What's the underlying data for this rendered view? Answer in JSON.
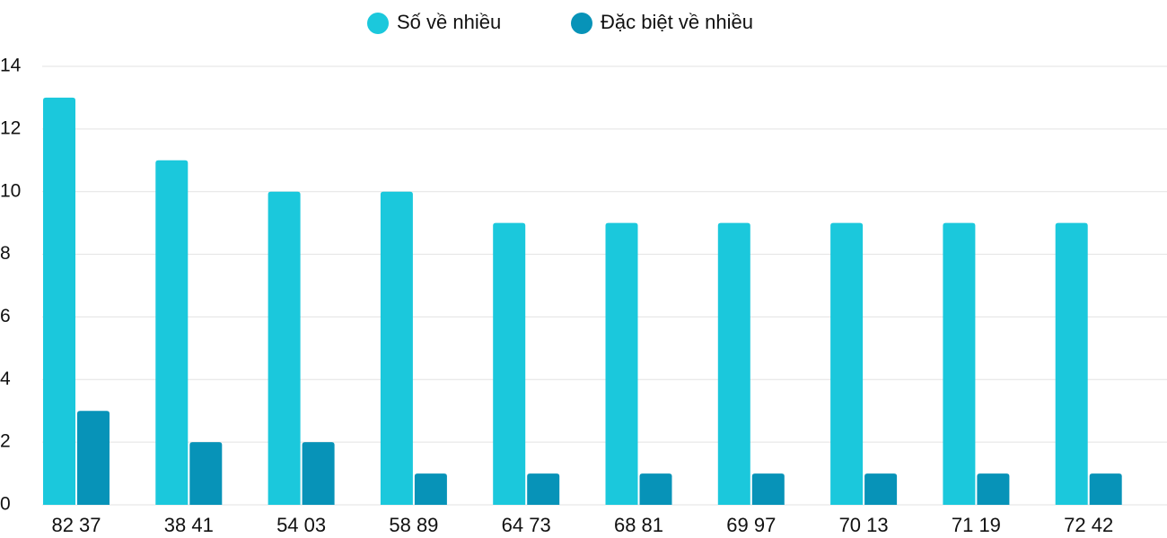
{
  "chart_data": {
    "type": "bar",
    "categories": [
      "82 37",
      "38 41",
      "54 03",
      "58 89",
      "64 73",
      "68 81",
      "69 97",
      "70 13",
      "71 19",
      "72 42"
    ],
    "series": [
      {
        "name": "Số về nhiều",
        "color": "#1bc8dc",
        "values": [
          13,
          11,
          10,
          10,
          9,
          9,
          9,
          9,
          9,
          9
        ]
      },
      {
        "name": "Đặc biệt về nhiều",
        "color": "#0793b8",
        "values": [
          3,
          2,
          2,
          1,
          1,
          1,
          1,
          1,
          1,
          1
        ]
      }
    ],
    "ylim": [
      0,
      14
    ],
    "yticks": [
      0,
      2,
      4,
      6,
      8,
      10,
      12,
      14
    ],
    "grid": true,
    "legend": "top"
  }
}
